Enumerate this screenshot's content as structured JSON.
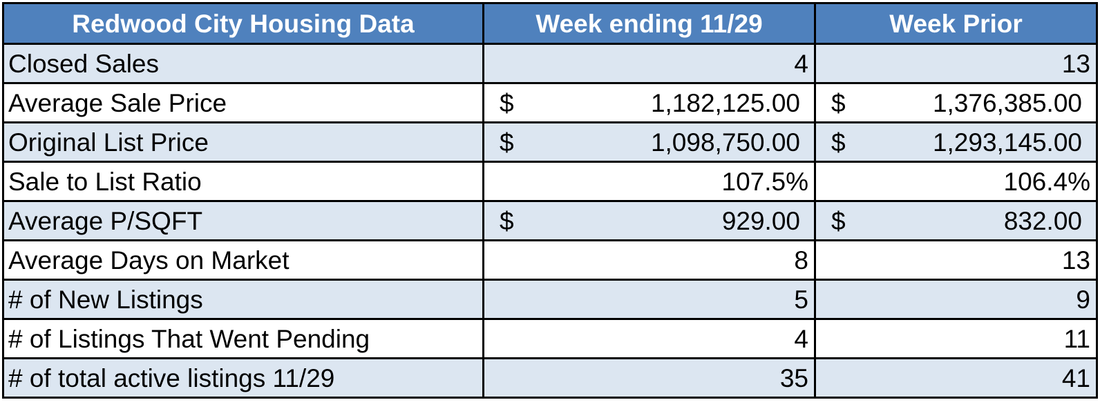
{
  "table": {
    "header_bg": "#4f81bd",
    "shade_bg": "#dce6f1",
    "plain_bg": "#ffffff",
    "headers": [
      "Redwood City Housing Data",
      "Week ending 11/29",
      "Week Prior"
    ],
    "rows": [
      {
        "label": "Closed Sales",
        "currency": false,
        "current": "4",
        "prior": "13"
      },
      {
        "label": "Average Sale Price",
        "currency": true,
        "symbol": "$",
        "current": "1,182,125.00",
        "prior": "1,376,385.00"
      },
      {
        "label": "Original List Price",
        "currency": true,
        "symbol": "$",
        "current": "1,098,750.00",
        "prior": "1,293,145.00"
      },
      {
        "label": "Sale to List Ratio",
        "currency": false,
        "current": "107.5%",
        "prior": "106.4%"
      },
      {
        "label": "Average P/SQFT",
        "currency": true,
        "symbol": "$",
        "current": "929.00",
        "prior": "832.00"
      },
      {
        "label": "Average Days on Market",
        "currency": false,
        "current": "8",
        "prior": "13"
      },
      {
        "label": "# of New Listings",
        "currency": false,
        "current": "5",
        "prior": "9"
      },
      {
        "label": "# of Listings That Went Pending",
        "currency": false,
        "current": "4",
        "prior": "11"
      },
      {
        "label": "# of total active listings 11/29",
        "currency": false,
        "current": "35",
        "prior": "41"
      }
    ]
  }
}
